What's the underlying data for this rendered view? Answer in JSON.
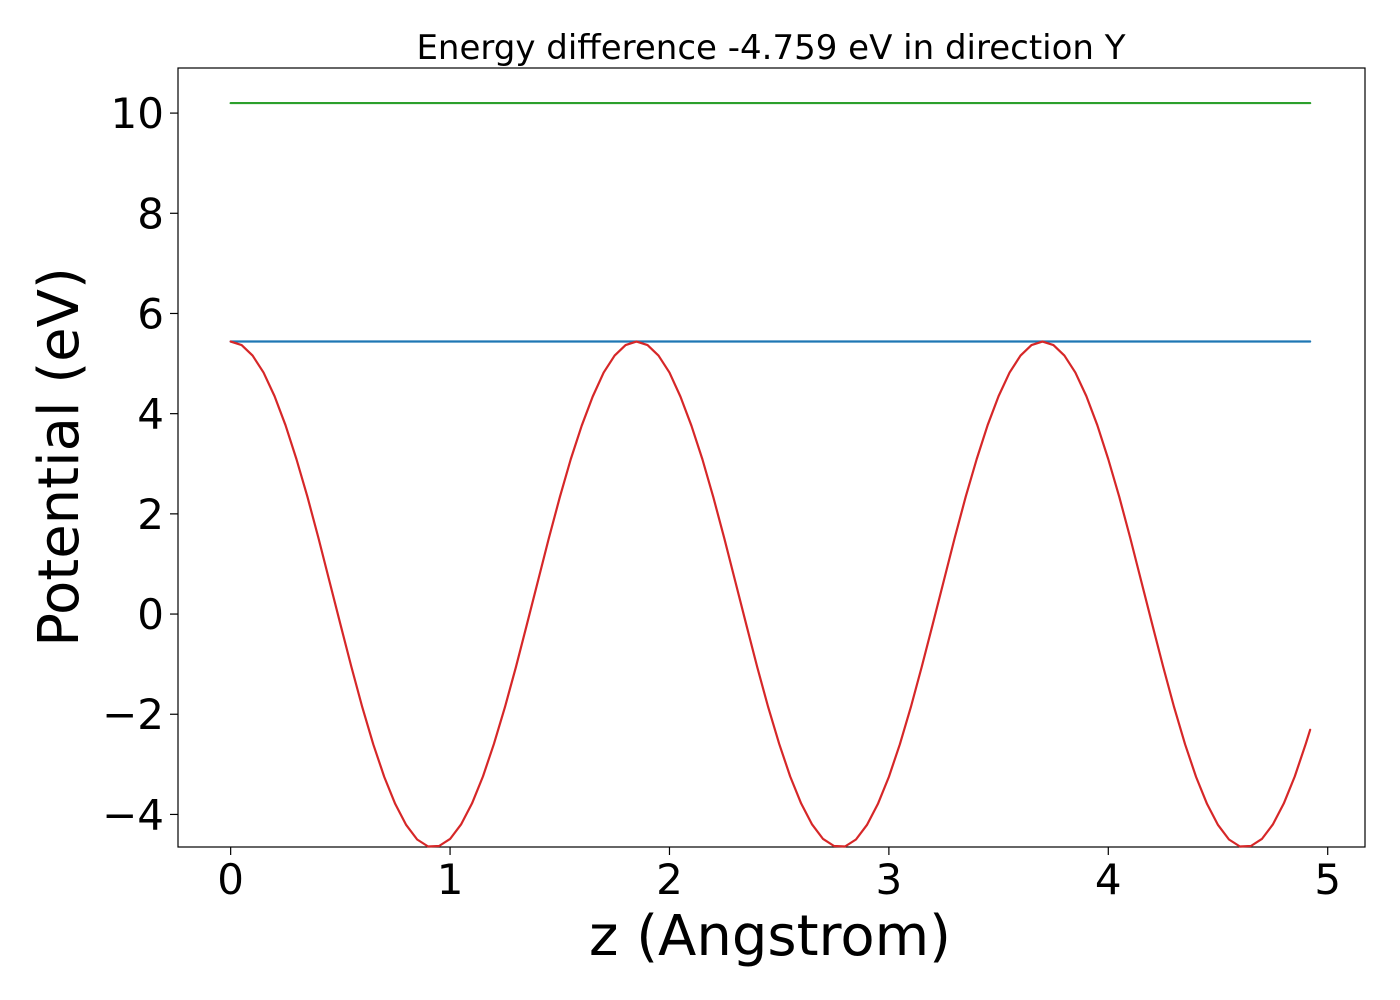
{
  "chart_data": {
    "type": "line",
    "title": "Energy difference -4.759 eV in direction Y",
    "xlabel": "z (Angstrom)",
    "ylabel": "Potential (eV)",
    "xlim": [
      -0.24,
      5.17
    ],
    "ylim": [
      -4.65,
      10.9
    ],
    "xticks": [
      0,
      1,
      2,
      3,
      4,
      5
    ],
    "xtick_labels": [
      "0",
      "1",
      "2",
      "3",
      "4",
      "5"
    ],
    "yticks": [
      -4,
      -2,
      0,
      2,
      4,
      6,
      8,
      10
    ],
    "ytick_labels": [
      "−4",
      "−2",
      "0",
      "2",
      "4",
      "6",
      "8",
      "10"
    ],
    "grid": false,
    "legend": "none",
    "series": [
      {
        "color": "#2ca02c",
        "x": [
          0,
          4.92
        ],
        "y": [
          10.2,
          10.2
        ]
      },
      {
        "color": "#1f77b4",
        "x": [
          0,
          4.92
        ],
        "y": [
          5.44,
          5.44
        ]
      },
      {
        "color": "#d62728",
        "x": [
          0.0,
          0.05,
          0.1,
          0.15,
          0.2,
          0.25,
          0.3,
          0.35,
          0.4,
          0.45,
          0.5,
          0.55,
          0.6,
          0.65,
          0.7,
          0.75,
          0.8,
          0.85,
          0.9,
          0.95,
          1.0,
          1.05,
          1.1,
          1.15,
          1.2,
          1.25,
          1.3,
          1.35,
          1.4,
          1.45,
          1.5,
          1.55,
          1.6,
          1.65,
          1.7,
          1.75,
          1.8,
          1.85,
          1.9,
          1.95,
          2.0,
          2.05,
          2.1,
          2.15,
          2.2,
          2.25,
          2.3,
          2.35,
          2.4,
          2.45,
          2.5,
          2.55,
          2.6,
          2.65,
          2.7,
          2.75,
          2.8,
          2.85,
          2.9,
          2.95,
          3.0,
          3.05,
          3.1,
          3.15,
          3.2,
          3.25,
          3.3,
          3.35,
          3.4,
          3.45,
          3.5,
          3.55,
          3.6,
          3.65,
          3.7,
          3.75,
          3.8,
          3.85,
          3.9,
          3.95,
          4.0,
          4.05,
          4.1,
          4.15,
          4.2,
          4.25,
          4.3,
          4.35,
          4.4,
          4.45,
          4.5,
          4.55,
          4.6,
          4.65,
          4.7,
          4.75,
          4.8,
          4.85,
          4.9,
          4.92
        ],
        "y": [
          5.44,
          5.37,
          5.16,
          4.82,
          4.35,
          3.77,
          3.09,
          2.34,
          1.52,
          0.66,
          -0.2,
          -1.05,
          -1.86,
          -2.6,
          -3.25,
          -3.79,
          -4.21,
          -4.5,
          -4.64,
          -4.63,
          -4.49,
          -4.2,
          -3.78,
          -3.24,
          -2.59,
          -1.86,
          -1.06,
          -0.21,
          0.65,
          1.51,
          2.33,
          3.09,
          3.76,
          4.34,
          4.82,
          5.16,
          5.37,
          5.44,
          5.37,
          5.16,
          4.82,
          4.34,
          3.76,
          3.09,
          2.33,
          1.51,
          0.65,
          -0.21,
          -1.06,
          -1.86,
          -2.59,
          -3.24,
          -3.78,
          -4.2,
          -4.49,
          -4.63,
          -4.64,
          -4.5,
          -4.21,
          -3.79,
          -3.25,
          -2.6,
          -1.86,
          -1.05,
          -0.2,
          0.66,
          1.52,
          2.34,
          3.09,
          3.77,
          4.35,
          4.82,
          5.16,
          5.37,
          5.44,
          5.37,
          5.16,
          4.82,
          4.35,
          3.77,
          3.09,
          2.34,
          1.52,
          0.66,
          -0.2,
          -1.05,
          -1.86,
          -2.6,
          -3.25,
          -3.79,
          -4.21,
          -4.5,
          -4.64,
          -4.63,
          -4.49,
          -4.2,
          -3.78,
          -3.24,
          -2.59,
          -2.31
        ]
      }
    ]
  }
}
